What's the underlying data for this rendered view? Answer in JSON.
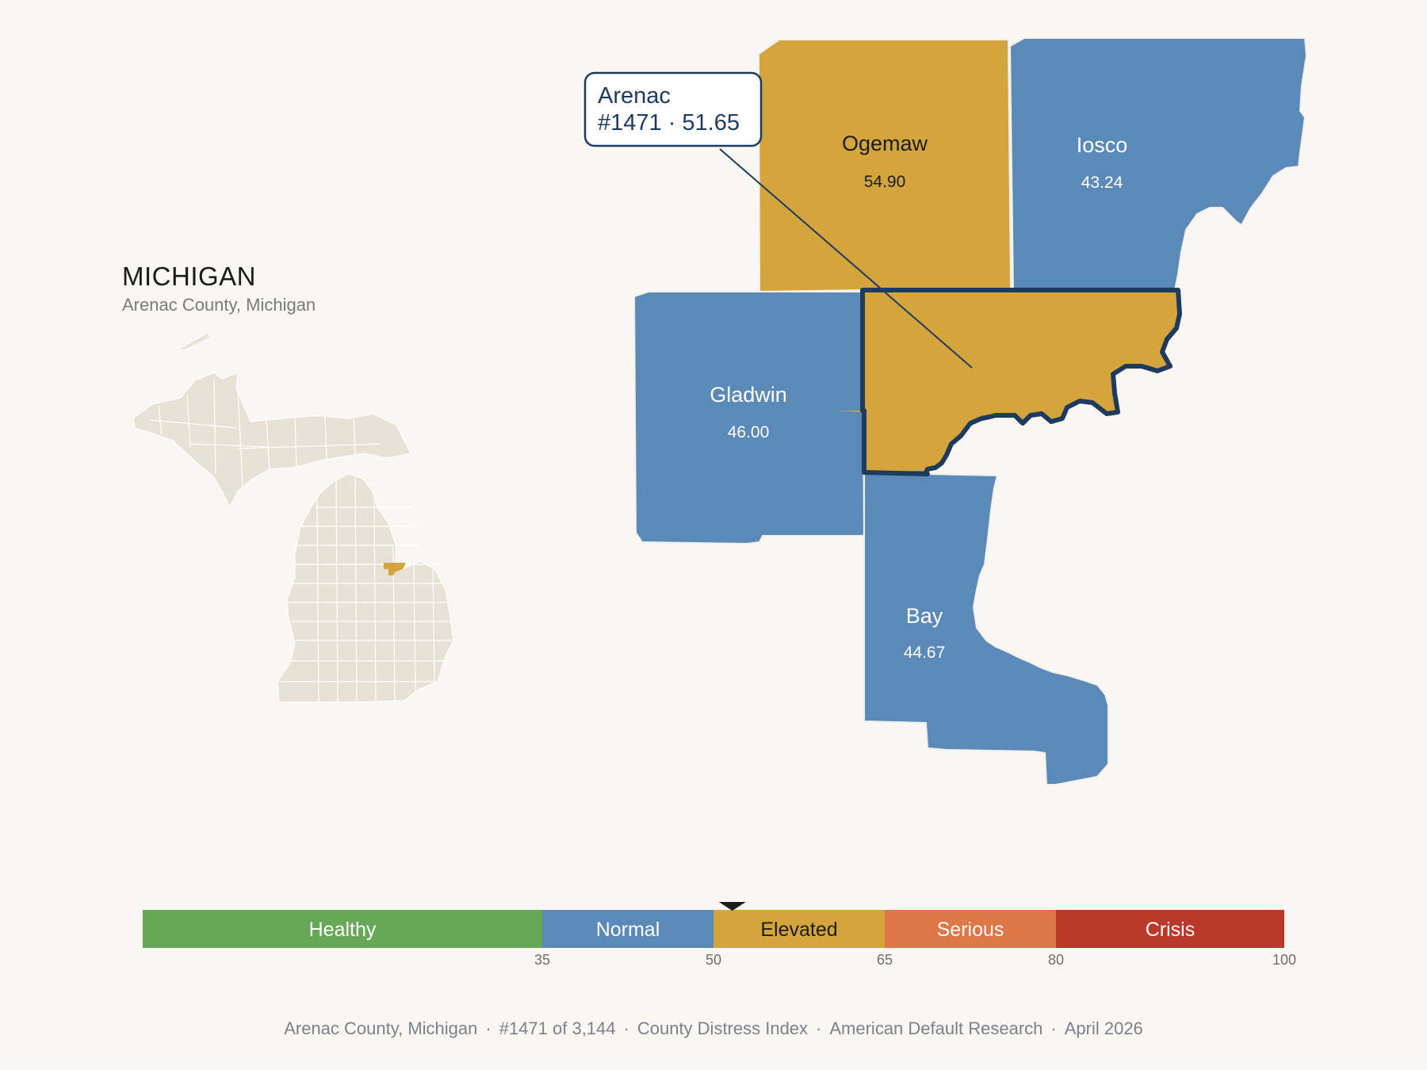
{
  "state": {
    "title": "MICHIGAN",
    "subtitle": "Arenac County, Michigan"
  },
  "tooltip": {
    "line1": "Arenac",
    "line2": "#1471 · 51.65"
  },
  "counties": [
    {
      "id": "ogemaw",
      "name": "Ogemaw",
      "value": "54.90",
      "color": "#d3a53c"
    },
    {
      "id": "iosco",
      "name": "Iosco",
      "value": "43.24",
      "color": "#5b8ab9"
    },
    {
      "id": "gladwin",
      "name": "Gladwin",
      "value": "46.00",
      "color": "#5b8ab9"
    },
    {
      "id": "bay",
      "name": "Bay",
      "value": "44.67",
      "color": "#5b8ab9"
    },
    {
      "id": "arenac",
      "name": "Arenac",
      "value": "51.65",
      "color": "#d3a53c"
    }
  ],
  "legend": {
    "marker_value": 51.65,
    "min": 0,
    "max": 100,
    "bands": [
      {
        "label": "Healthy",
        "from": 0,
        "to": 35,
        "color": "#67a758",
        "text": "#ffffff"
      },
      {
        "label": "Normal",
        "from": 35,
        "to": 50,
        "color": "#5b8ab9",
        "text": "#ffffff"
      },
      {
        "label": "Elevated",
        "from": 50,
        "to": 65,
        "color": "#d3a53c",
        "text": "#1c1c1c"
      },
      {
        "label": "Serious",
        "from": 65,
        "to": 80,
        "color": "#dd7748",
        "text": "#ffffff"
      },
      {
        "label": "Crisis",
        "from": 80,
        "to": 100,
        "color": "#b93a2b",
        "text": "#ffffff"
      }
    ],
    "ticks": [
      "35",
      "50",
      "65",
      "80",
      "100"
    ]
  },
  "footer": {
    "county": "Arenac County, Michigan",
    "rank": "#1471 of 3,144",
    "index": "County Distress Index",
    "source": "American Default Research",
    "date": "April 2026"
  }
}
